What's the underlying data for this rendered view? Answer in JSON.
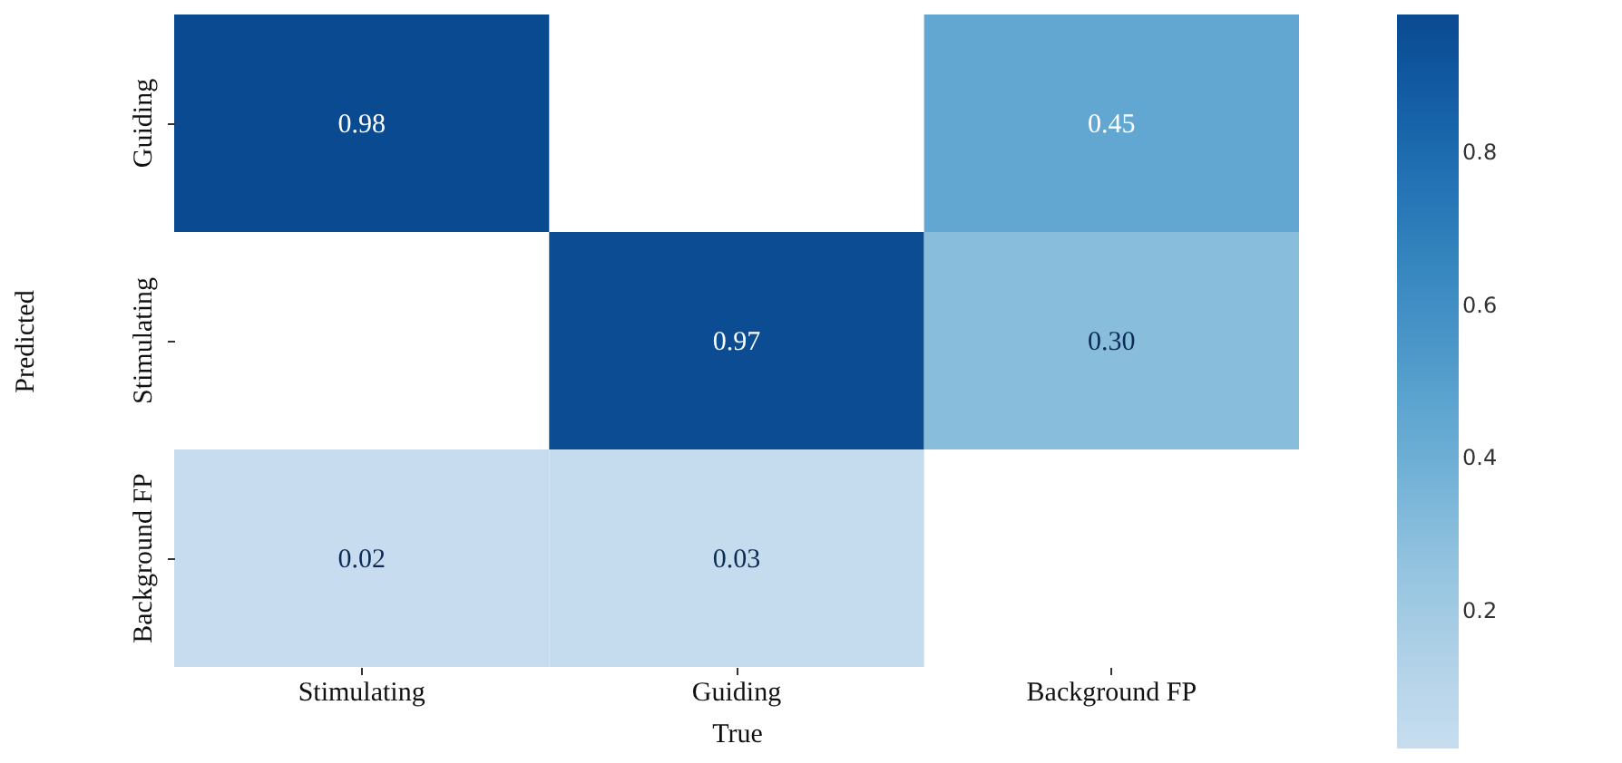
{
  "chart_data": {
    "type": "heatmap",
    "xlabel": "True",
    "ylabel": "Predicted",
    "categories": [
      "Stimulating",
      "Guiding",
      "Background FP"
    ],
    "y_categories": [
      "Guiding",
      "Stimulating",
      "Background FP"
    ],
    "cells": [
      [
        0.98,
        null,
        0.45
      ],
      [
        null,
        0.97,
        0.3
      ],
      [
        0.02,
        0.03,
        null
      ]
    ],
    "cell_labels": [
      [
        "0.98",
        null,
        "0.45"
      ],
      [
        null,
        "0.97",
        "0.30"
      ],
      [
        "0.02",
        "0.03",
        null
      ]
    ],
    "clim": [
      0.02,
      0.98
    ],
    "cticks": [
      0.2,
      0.4,
      0.6,
      0.8
    ],
    "data_labels": true
  }
}
